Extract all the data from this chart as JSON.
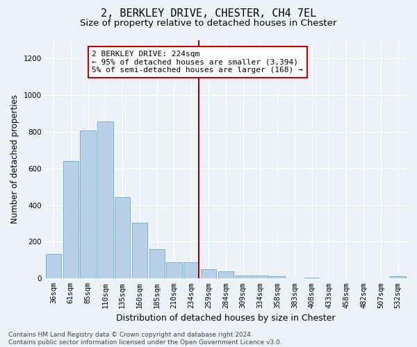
{
  "title1": "2, BERKLEY DRIVE, CHESTER, CH4 7EL",
  "title2": "Size of property relative to detached houses in Chester",
  "xlabel": "Distribution of detached houses by size in Chester",
  "ylabel": "Number of detached properties",
  "categories": [
    "36sqm",
    "61sqm",
    "85sqm",
    "110sqm",
    "135sqm",
    "160sqm",
    "185sqm",
    "210sqm",
    "234sqm",
    "259sqm",
    "284sqm",
    "309sqm",
    "334sqm",
    "358sqm",
    "383sqm",
    "408sqm",
    "433sqm",
    "458sqm",
    "482sqm",
    "507sqm",
    "532sqm"
  ],
  "values": [
    135,
    640,
    805,
    855,
    445,
    305,
    160,
    90,
    90,
    50,
    40,
    15,
    18,
    12,
    0,
    5,
    0,
    0,
    0,
    0,
    12
  ],
  "bar_color": "#b8d0e8",
  "bar_edgecolor": "#6aaad4",
  "vline_x_index": 8,
  "vline_color": "#aa0000",
  "annotation_text": "2 BERKLEY DRIVE: 224sqm\n← 95% of detached houses are smaller (3,394)\n5% of semi-detached houses are larger (168) →",
  "annotation_box_color": "#ffffff",
  "annotation_box_edgecolor": "#cc0000",
  "ylim": [
    0,
    1300
  ],
  "yticks": [
    0,
    200,
    400,
    600,
    800,
    1000,
    1200
  ],
  "background_color": "#edf2f9",
  "grid_color": "#ffffff",
  "footer_text": "Contains HM Land Registry data © Crown copyright and database right 2024.\nContains public sector information licensed under the Open Government Licence v3.0.",
  "title1_fontsize": 11,
  "title2_fontsize": 9.5,
  "xlabel_fontsize": 9,
  "ylabel_fontsize": 8.5,
  "tick_fontsize": 7.5,
  "annotation_fontsize": 8,
  "footer_fontsize": 6.5
}
